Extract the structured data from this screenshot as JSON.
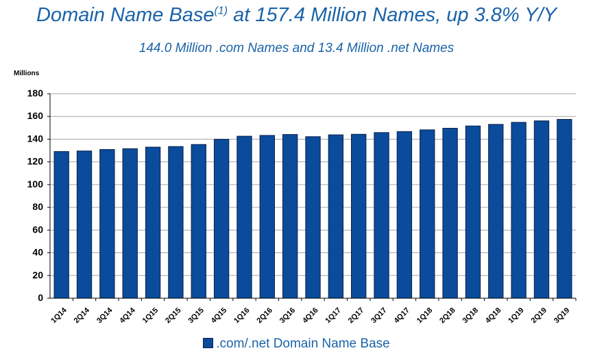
{
  "title": {
    "text": "Domain Name Base",
    "superscript": "(1)",
    "rest": " at 157.4 Million Names, up 3.8% Y/Y"
  },
  "subtitle": "144.0 Million .com Names and 13.4 Million .net Names",
  "colors": {
    "title": "#1a63a8",
    "bar_fill": "#0a4c9b",
    "bar_stroke": "#0b1f4a",
    "grid": "#a6a6a6",
    "axis": "#000000"
  },
  "chart_data": {
    "type": "bar",
    "ylabel": "Millions",
    "xlabel": "",
    "ylim": [
      0,
      180
    ],
    "yticks": [
      0,
      20,
      40,
      60,
      80,
      100,
      120,
      140,
      160,
      180
    ],
    "grid": true,
    "legend_position": "bottom",
    "categories": [
      "1Q14",
      "2Q14",
      "3Q14",
      "4Q14",
      "1Q15",
      "2Q15",
      "3Q15",
      "4Q15",
      "1Q16",
      "2Q16",
      "3Q16",
      "4Q16",
      "1Q17",
      "2Q17",
      "3Q17",
      "4Q17",
      "1Q18",
      "2Q18",
      "3Q18",
      "4Q18",
      "1Q19",
      "2Q19",
      "3Q19"
    ],
    "series": [
      {
        "name": ".com/.net Domain Name Base",
        "values": [
          129.1,
          129.6,
          130.9,
          131.6,
          133.0,
          133.5,
          135.3,
          139.9,
          142.6,
          143.3,
          144.1,
          142.2,
          143.8,
          144.3,
          145.8,
          146.7,
          148.2,
          149.6,
          151.6,
          153.0,
          154.8,
          156.1,
          157.4
        ]
      }
    ]
  }
}
